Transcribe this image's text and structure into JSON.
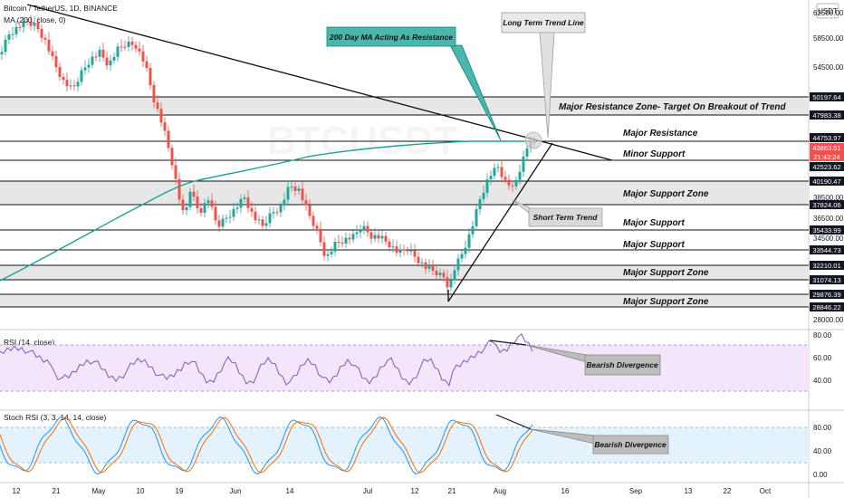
{
  "header": {
    "symbol_line": "Bitcoin / TetherUS, 1D, BINANCE",
    "ma_line": "MA (200, close, 0)",
    "currency": "USDT",
    "watermark": "BTCUSDT"
  },
  "chart_data": [
    {
      "type": "candlestick",
      "title": "Bitcoin / TetherUS, 1D, BINANCE",
      "indicator": "MA (200, close, 0)",
      "y_ticks": [
        62500,
        58500,
        54500,
        38500,
        36500,
        34500,
        28000
      ],
      "x_ticks": [
        "12",
        "21",
        "May",
        "10",
        "19",
        "Jun",
        "14",
        "Jul",
        "12",
        "21",
        "Aug",
        "16",
        "Sep",
        "13",
        "22",
        "Oct"
      ],
      "price_levels": [
        {
          "value": "50197.64",
          "label": "Major Resistance Zone- Target On Breakout of Trend"
        },
        {
          "value": "47983.38",
          "label": ""
        },
        {
          "value": "44753.97",
          "label": "Major Resistance"
        },
        {
          "value": "43863.51",
          "label": "",
          "current": true
        },
        {
          "value": "21:43:24",
          "label": "",
          "countdown": true
        },
        {
          "value": "42523.62",
          "label": "Minor Support"
        },
        {
          "value": "40190.47",
          "label": "Major Support Zone"
        },
        {
          "value": "37824.06",
          "label": ""
        },
        {
          "value": "35433.99",
          "label": "Major Support"
        },
        {
          "value": "33544.73",
          "label": "Major Support"
        },
        {
          "value": "32210.01",
          "label": "Major Support Zone"
        },
        {
          "value": "31074.13",
          "label": ""
        },
        {
          "value": "29876.39",
          "label": "Major Support Zone"
        },
        {
          "value": "28846.22",
          "label": ""
        }
      ],
      "annotations": [
        "200 Day MA Acting As Resistance",
        "Long Term Trend Line",
        "Short Term Trend"
      ],
      "colors": {
        "up": "#26a69a",
        "down": "#ef5350",
        "ma": "#1aa394",
        "zone": "#e5e5e5",
        "rsi_band": "#f3e6fb",
        "stoch_band": "#e3f2fd"
      }
    },
    {
      "type": "line",
      "title": "RSI (14, close)",
      "y_ticks": [
        80.0,
        60.0,
        40.0
      ],
      "annotation": "Bearish Divergence"
    },
    {
      "type": "line",
      "title": "Stoch RSI (3, 3, 14, 14, close)",
      "y_ticks": [
        80.0,
        40.0,
        0.0
      ],
      "annotation": "Bearish Divergence"
    }
  ]
}
